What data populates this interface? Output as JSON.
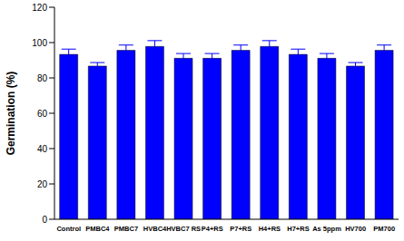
{
  "chart_data": {
    "type": "bar",
    "y_label": "Germination (%)",
    "categories": [
      "Control",
      "PMBC4",
      "PMBC7",
      "HVBC4",
      "HVBC7 RS",
      "P4+RS",
      "P7+RS",
      "H4+RS",
      "H7+RS",
      "As 5ppm",
      "HV700",
      "PM700"
    ],
    "values": [
      93.3,
      86.7,
      95.6,
      97.8,
      91.1,
      91.1,
      95.6,
      97.8,
      93.3,
      91.1,
      86.7,
      95.6
    ],
    "errors": [
      3,
      2,
      3,
      3.3,
      2.7,
      2.7,
      3,
      3.3,
      3,
      2.7,
      2,
      3
    ],
    "color": "#0000ff",
    "ylim": [
      0,
      120
    ],
    "yticks": [
      0,
      20,
      40,
      60,
      80,
      100,
      120
    ]
  }
}
